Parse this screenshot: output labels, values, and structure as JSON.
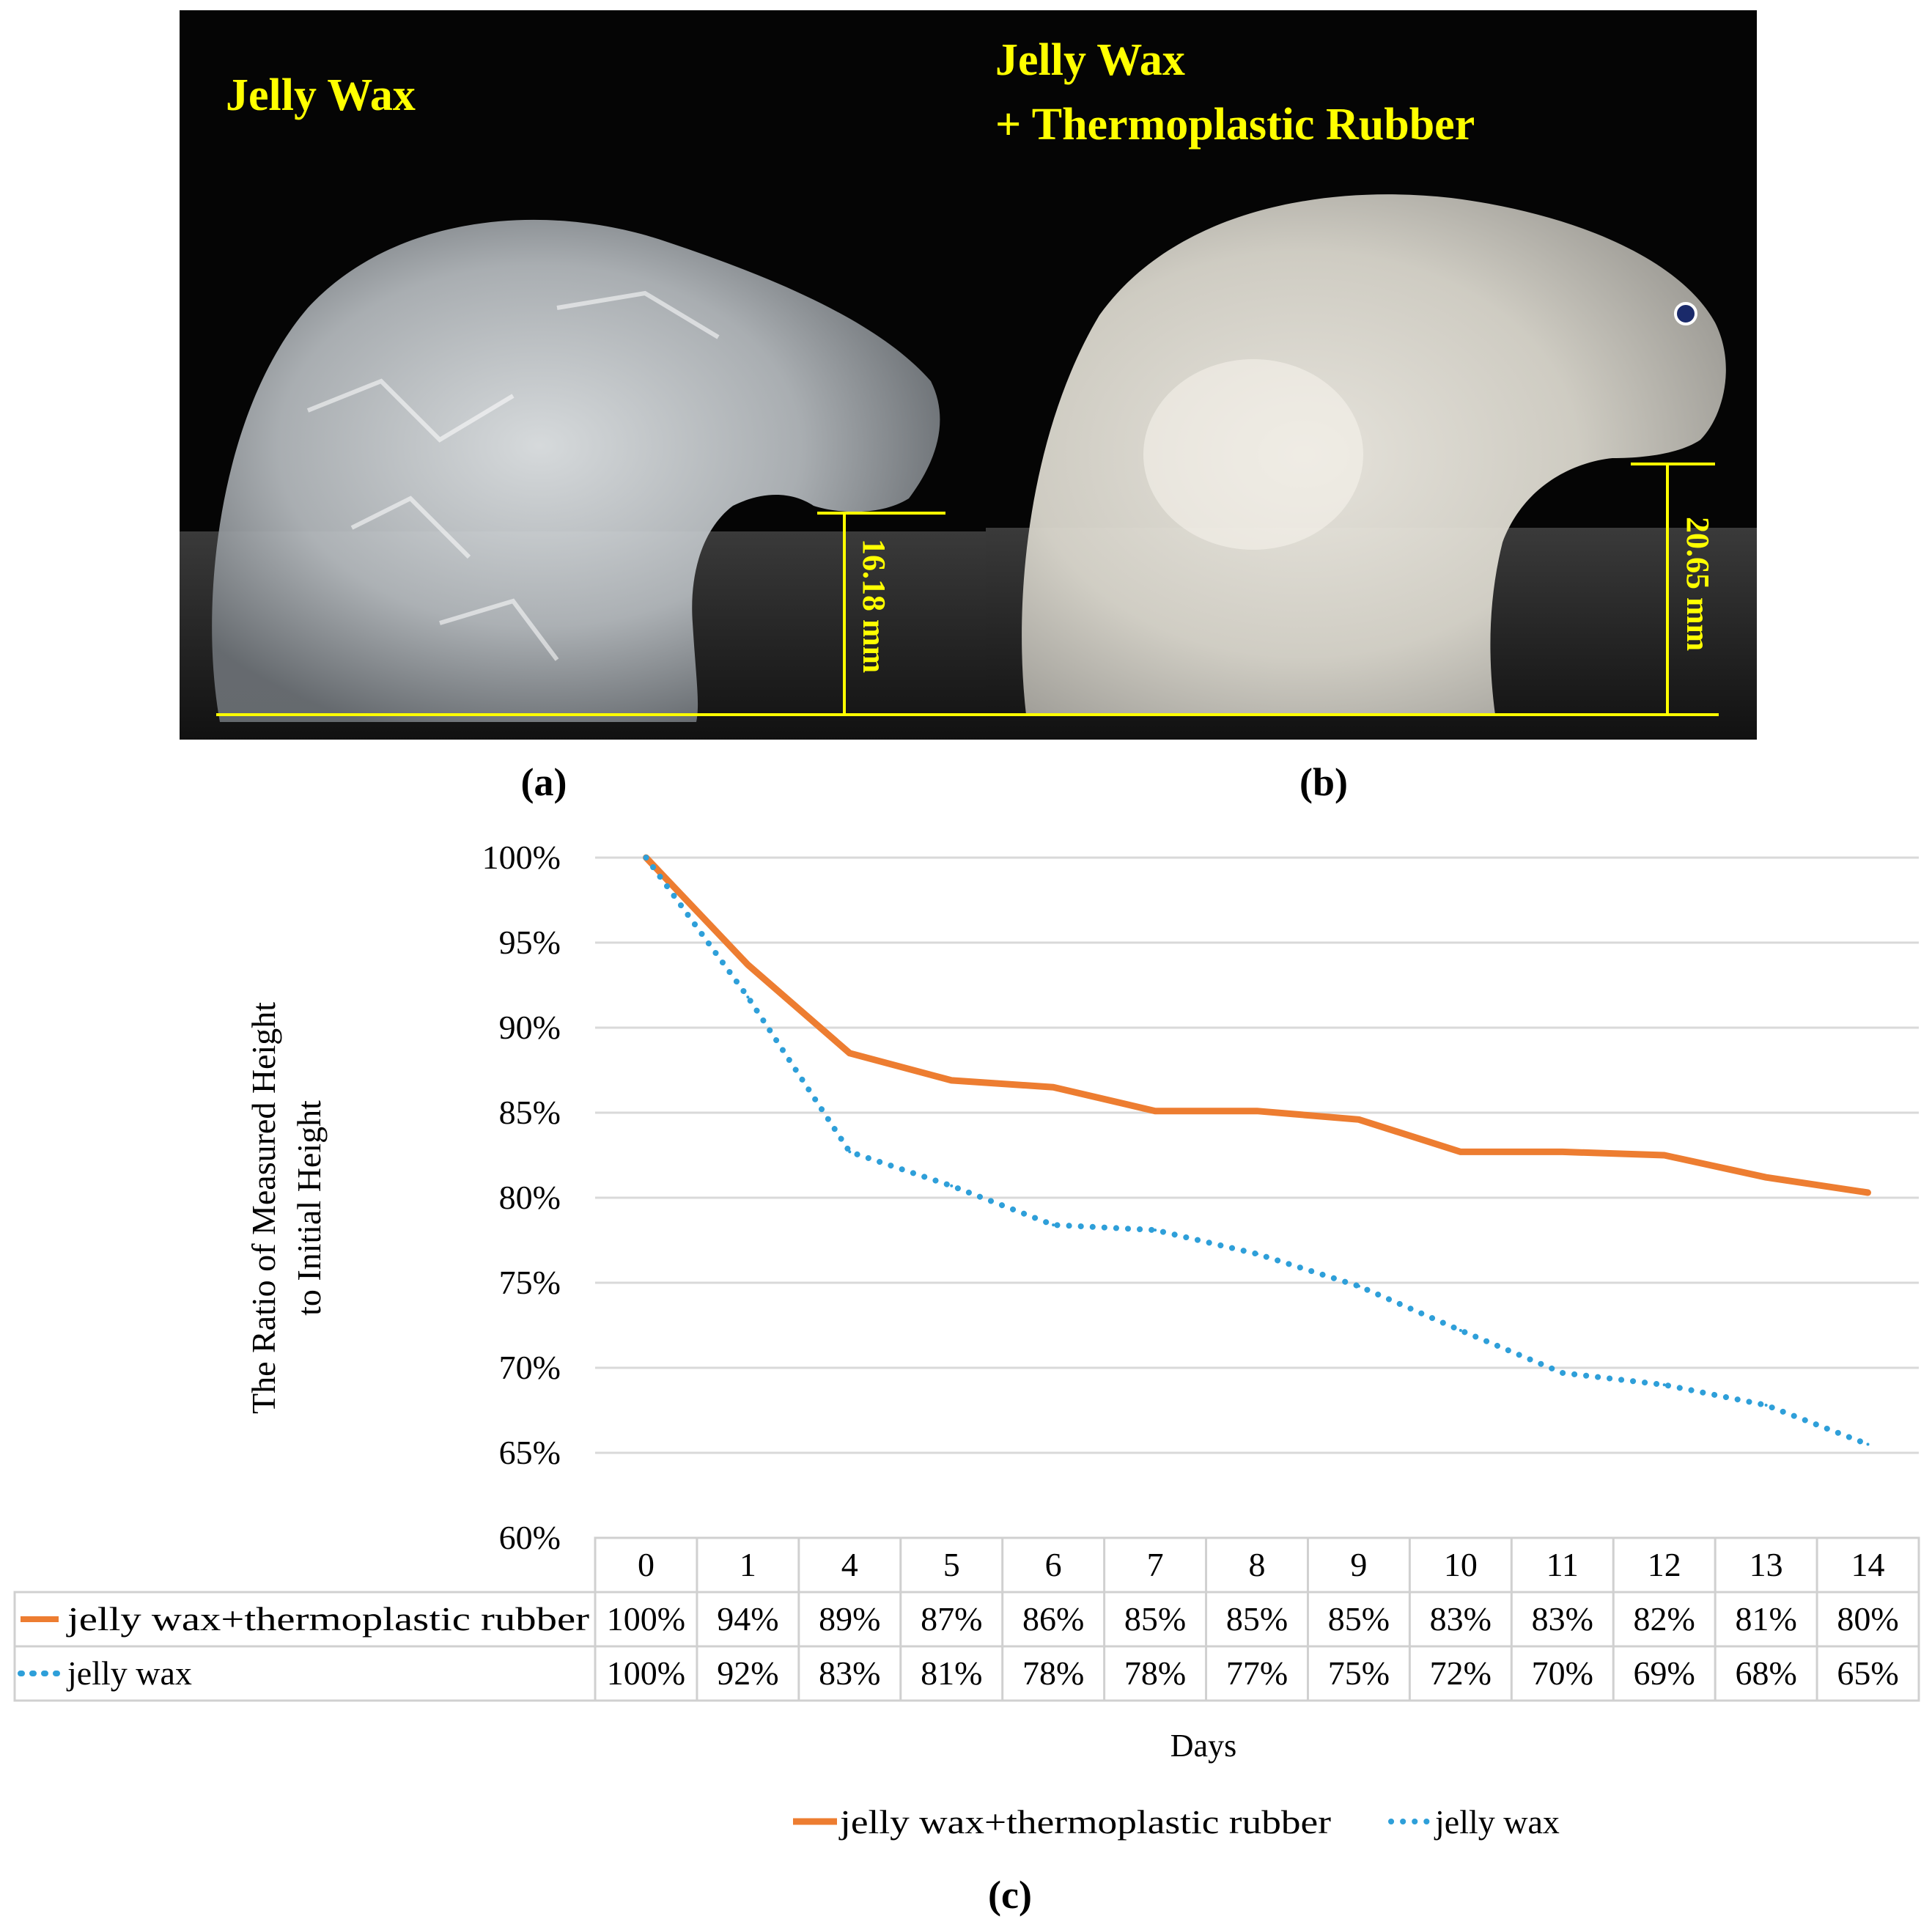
{
  "panels": {
    "a": {
      "title": "Jelly Wax",
      "measurement": "16.18 mm",
      "caption": "(a)"
    },
    "b": {
      "title_line1": "Jelly Wax",
      "title_line2": "+ Thermoplastic Rubber",
      "measurement": "20.65 mm",
      "caption": "(b)"
    },
    "c": {
      "caption": "(c)"
    }
  },
  "colors": {
    "photo_background": "#050505",
    "label_yellow": "#ffff00",
    "series_rubber": "#ed7d31",
    "series_wax": "#2e9fd9",
    "gridline": "#d9d9d9",
    "table_border": "#d0d0d0"
  },
  "chart_data": {
    "type": "line",
    "title": "",
    "xlabel": "Days",
    "ylabel_line1": "The Ratio of Measured Height",
    "ylabel_line2": "to Initial Height",
    "x": [
      "0",
      "1",
      "4",
      "5",
      "6",
      "7",
      "8",
      "9",
      "10",
      "11",
      "12",
      "13",
      "14"
    ],
    "ylim": [
      0.6,
      1.0
    ],
    "yticks": [
      "100%",
      "95%",
      "90%",
      "85%",
      "80%",
      "75%",
      "70%",
      "65%",
      "60%"
    ],
    "grid": true,
    "legend_position": "bottom",
    "data_table": true,
    "series": [
      {
        "name": "jelly wax+thermoplastic rubber",
        "style": "solid",
        "color": "#ed7d31",
        "values": [
          1.0,
          0.937,
          0.885,
          0.869,
          0.865,
          0.851,
          0.851,
          0.846,
          0.827,
          0.827,
          0.825,
          0.812,
          0.803
        ],
        "labels": [
          "100%",
          "94%",
          "89%",
          "87%",
          "86%",
          "85%",
          "85%",
          "85%",
          "83%",
          "83%",
          "82%",
          "81%",
          "80%"
        ]
      },
      {
        "name": "jelly wax",
        "style": "dotted",
        "color": "#2e9fd9",
        "values": [
          1.0,
          0.918,
          0.827,
          0.807,
          0.784,
          0.781,
          0.767,
          0.748,
          0.722,
          0.697,
          0.69,
          0.678,
          0.655
        ],
        "labels": [
          "100%",
          "92%",
          "83%",
          "81%",
          "78%",
          "78%",
          "77%",
          "75%",
          "72%",
          "70%",
          "69%",
          "68%",
          "65%"
        ]
      }
    ]
  }
}
